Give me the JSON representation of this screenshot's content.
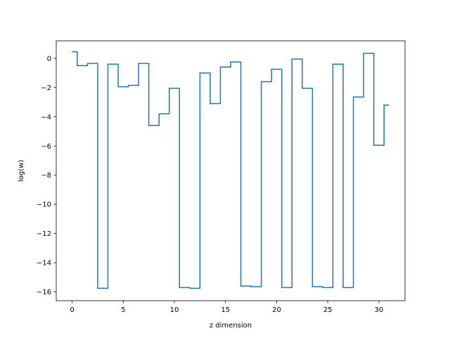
{
  "chart_data": {
    "type": "line",
    "drawstyle": "steps-mid",
    "title": "",
    "xlabel": "z dimension",
    "ylabel": "log(w)",
    "xlim": [
      -1.55,
      32.55
    ],
    "ylim": [
      -16.6,
      1.2
    ],
    "xticks": [
      0,
      5,
      10,
      15,
      20,
      25,
      30
    ],
    "yticks": [
      0,
      -2,
      -4,
      -6,
      -8,
      -10,
      -12,
      -14,
      -16
    ],
    "grid": false,
    "legend": "none",
    "line_color": "#1f77b4",
    "series": [
      {
        "x": [
          0,
          1,
          2,
          3,
          4,
          5,
          6,
          7,
          8,
          9,
          10,
          11,
          12,
          13,
          14,
          15,
          16,
          17,
          18,
          19,
          20,
          21,
          22,
          23,
          24,
          25,
          26,
          27,
          28,
          29,
          30,
          31
        ],
        "values": [
          0.45,
          -0.5,
          -0.35,
          -15.75,
          -0.4,
          -1.95,
          -1.85,
          -0.35,
          -4.6,
          -3.8,
          -2.05,
          -15.7,
          -15.75,
          -1.0,
          -3.1,
          -0.6,
          -0.25,
          -15.6,
          -15.65,
          -1.6,
          -0.75,
          -15.7,
          -0.05,
          -2.05,
          -15.65,
          -15.7,
          -0.4,
          -15.7,
          -2.65,
          0.35,
          -5.95,
          -3.2
        ]
      }
    ]
  }
}
